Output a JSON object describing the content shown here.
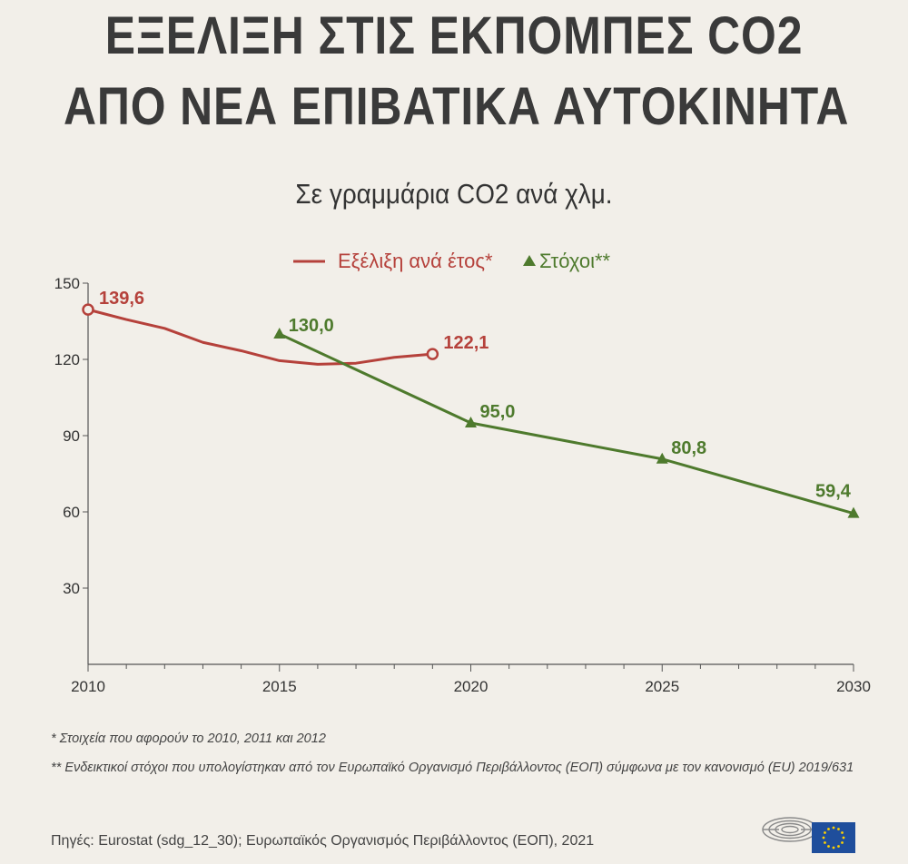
{
  "header": {
    "title_line1": "ΕΞΕΛΙΞΗ ΣΤΙΣ ΕΚΠΟΜΠΕΣ CO2",
    "title_line2": "ΑΠΟ ΝΕΑ ΕΠΙΒΑΤΙΚΑ ΑΥΤΟΚΙΝΗΤΑ",
    "subtitle": "Σε γραμμάρια CO2 ανά χλμ."
  },
  "chart_data": {
    "type": "line",
    "xlim": [
      2010,
      2030
    ],
    "ylim": [
      0,
      150
    ],
    "x_ticks": [
      2010,
      2015,
      2020,
      2025,
      2030
    ],
    "x_tick_labels": [
      "2010",
      "2015",
      "2020",
      "2025",
      "2030"
    ],
    "y_ticks": [
      30,
      60,
      90,
      120,
      150
    ],
    "y_tick_labels": [
      "30",
      "60",
      "90",
      "120",
      "150"
    ],
    "grid": false,
    "legend_position": "top-center",
    "series": [
      {
        "name": "Εξέλιξη ανά έτος*",
        "color": "#b5413b",
        "marker": "open-circle-endpoints",
        "x": [
          2010,
          2011,
          2012,
          2013,
          2014,
          2015,
          2016,
          2017,
          2018,
          2019
        ],
        "y": [
          139.6,
          135.7,
          132.2,
          126.7,
          123.4,
          119.5,
          118.1,
          118.5,
          120.8,
          122.1
        ],
        "labels": [
          {
            "x": 2010,
            "y": 139.6,
            "text": "139,6"
          },
          {
            "x": 2019,
            "y": 122.1,
            "text": "122,1"
          }
        ]
      },
      {
        "name": "Στόχοι**",
        "color": "#4e7a2d",
        "marker": "triangle",
        "x": [
          2015,
          2020,
          2025,
          2030
        ],
        "y": [
          130.0,
          95.0,
          80.8,
          59.4
        ],
        "labels": [
          {
            "x": 2015,
            "y": 130.0,
            "text": "130,0"
          },
          {
            "x": 2020,
            "y": 95.0,
            "text": "95,0"
          },
          {
            "x": 2025,
            "y": 80.8,
            "text": "80,8"
          },
          {
            "x": 2030,
            "y": 59.4,
            "text": "59,4"
          }
        ]
      }
    ]
  },
  "footnotes": {
    "note1": "* Στοιχεία που αφορούν το 2010, 2011 και 2012",
    "note2": "** Ενδεικτικοί στόχοι που υπολογίστηκαν από τον Ευρωπαϊκό Οργανισμό Περιβάλλοντος (ΕΟΠ) σύμφωνα με τον κανονισμό (EU) 2019/631",
    "source": "Πηγές: Eurostat (sdg_12_30); Ευρωπαϊκός Οργανισμός Περιβάλλοντος (ΕΟΠ), 2021"
  },
  "colors": {
    "background": "#f2efe9",
    "axis": "#555555",
    "title": "#3a3a3a",
    "eu_blue": "#1f4e9c",
    "eu_stars": "#ffd200"
  }
}
